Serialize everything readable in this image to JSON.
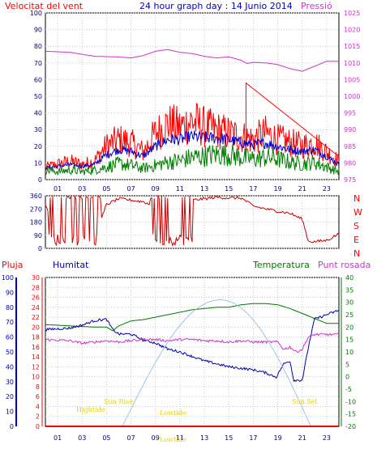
{
  "header": {
    "title": "24 hour graph day : 14 Junio 2014",
    "wind_label": "Velocitat del vent",
    "pressure_label": "Pressió"
  },
  "colors": {
    "wind_speed": "#ff0000",
    "wind_avg": "#0000cc",
    "wind_min": "#008000",
    "pressure": "#cc33cc",
    "direction": "#cc0000",
    "rain": "#ff0000",
    "humidity": "#0000aa",
    "temperature": "#007700",
    "dewpoint": "#cc33cc",
    "solar": "#9fc4e8",
    "sun_markers": "#e6d400",
    "title": "#0000cc"
  },
  "chart_data": [
    {
      "id": "wind",
      "type": "line",
      "ylabel_left": "Velocitat del vent",
      "ylabel_right": "Pressió",
      "x_ticks": [
        "01",
        "03",
        "05",
        "07",
        "09",
        "11",
        "13",
        "15",
        "17",
        "19",
        "21",
        "23"
      ],
      "y_left_ticks": [
        "0",
        "10",
        "20",
        "30",
        "40",
        "50",
        "60",
        "70",
        "80",
        "90",
        "100"
      ],
      "y_right_ticks": [
        "975",
        "980",
        "985",
        "990",
        "995",
        "1000",
        "1005",
        "1010",
        "1015",
        "1020",
        "1025"
      ],
      "x_range": [
        0,
        24
      ],
      "ylim_left": [
        0,
        100
      ],
      "ylim_right": [
        975,
        1025
      ],
      "grid": true,
      "series": [
        {
          "key": "pressure",
          "axis": "right",
          "points": [
            [
              0,
              1013.5
            ],
            [
              2,
              1013.2
            ],
            [
              4,
              1012.0
            ],
            [
              6,
              1011.8
            ],
            [
              7,
              1011.5
            ],
            [
              8,
              1012.2
            ],
            [
              9,
              1013.5
            ],
            [
              10,
              1014.0
            ],
            [
              11,
              1013.2
            ],
            [
              12,
              1012.8
            ],
            [
              13,
              1012.0
            ],
            [
              14,
              1011.5
            ],
            [
              15,
              1011.8
            ],
            [
              16,
              1010.8
            ],
            [
              16.5,
              1009.8
            ],
            [
              17,
              1010.2
            ],
            [
              18,
              1010.0
            ],
            [
              19,
              1009.5
            ],
            [
              20,
              1008.3
            ],
            [
              21,
              1007.5
            ],
            [
              22,
              1009.0
            ],
            [
              23,
              1010.5
            ],
            [
              24,
              1010.5
            ]
          ]
        },
        {
          "key": "wind_speed",
          "axis": "left",
          "gen": "gust",
          "points": [
            [
              0,
              8
            ],
            [
              1,
              10
            ],
            [
              2,
              12
            ],
            [
              3,
              10
            ],
            [
              4,
              12
            ],
            [
              5,
              22
            ],
            [
              6,
              26
            ],
            [
              7,
              24
            ],
            [
              8,
              18
            ],
            [
              9,
              30
            ],
            [
              10,
              36
            ],
            [
              11,
              34
            ],
            [
              12,
              38
            ],
            [
              13,
              34
            ],
            [
              14,
              32
            ],
            [
              15,
              30
            ],
            [
              16,
              28
            ],
            [
              17,
              26
            ],
            [
              18,
              30
            ],
            [
              19,
              26
            ],
            [
              20,
              24
            ],
            [
              21,
              22
            ],
            [
              22,
              24
            ],
            [
              23,
              18
            ],
            [
              24,
              12
            ]
          ]
        },
        {
          "key": "wind_avg",
          "axis": "left",
          "gen": "avg",
          "points": [
            [
              0,
              7
            ],
            [
              1,
              8
            ],
            [
              2,
              9
            ],
            [
              3,
              8
            ],
            [
              4,
              9
            ],
            [
              5,
              15
            ],
            [
              6,
              18
            ],
            [
              7,
              17
            ],
            [
              8,
              14
            ],
            [
              9,
              20
            ],
            [
              10,
              24
            ],
            [
              11,
              24
            ],
            [
              12,
              26
            ],
            [
              13,
              25
            ],
            [
              14,
              25
            ],
            [
              15,
              24
            ],
            [
              16,
              22
            ],
            [
              17,
              21
            ],
            [
              18,
              22
            ],
            [
              19,
              20
            ],
            [
              20,
              18
            ],
            [
              21,
              17
            ],
            [
              22,
              18
            ],
            [
              23,
              14
            ],
            [
              24,
              9
            ]
          ]
        },
        {
          "key": "wind_min",
          "axis": "left",
          "gen": "min",
          "points": [
            [
              0,
              6
            ],
            [
              1,
              5
            ],
            [
              2,
              6
            ],
            [
              3,
              5
            ],
            [
              4,
              6
            ],
            [
              5,
              8
            ],
            [
              6,
              10
            ],
            [
              7,
              9
            ],
            [
              8,
              7
            ],
            [
              9,
              9
            ],
            [
              10,
              11
            ],
            [
              11,
              12
            ],
            [
              12,
              14
            ],
            [
              13,
              15
            ],
            [
              14,
              16
            ],
            [
              15,
              16
            ],
            [
              16,
              14
            ],
            [
              17,
              13
            ],
            [
              18,
              14
            ],
            [
              19,
              13
            ],
            [
              20,
              11
            ],
            [
              21,
              10
            ],
            [
              22,
              11
            ],
            [
              23,
              8
            ],
            [
              24,
              5
            ]
          ]
        }
      ]
    },
    {
      "id": "direction",
      "type": "line",
      "ylabel_right": [
        "N",
        "W",
        "S",
        "E",
        "N"
      ],
      "y_ticks": [
        "0",
        "90",
        "180",
        "270",
        "360"
      ],
      "ylim": [
        0,
        360
      ],
      "x_range": [
        0,
        24
      ],
      "grid": true,
      "series": [
        {
          "key": "direction",
          "gen": "dir",
          "points": [
            [
              0,
              300
            ],
            [
              1,
              60
            ],
            [
              2,
              330
            ],
            [
              3,
              80
            ],
            [
              4,
              60
            ],
            [
              5,
              300
            ],
            [
              6,
              340
            ],
            [
              7,
              330
            ],
            [
              8,
              320
            ],
            [
              9,
              280
            ],
            [
              10,
              300
            ],
            [
              11,
              330
            ],
            [
              12,
              330
            ],
            [
              13,
              340
            ],
            [
              14,
              350
            ],
            [
              15,
              345
            ],
            [
              16,
              345
            ],
            [
              17,
              290
            ],
            [
              18,
              270
            ],
            [
              19,
              255
            ],
            [
              20,
              240
            ],
            [
              21,
              200
            ],
            [
              21.5,
              50
            ],
            [
              22,
              45
            ],
            [
              23,
              55
            ],
            [
              24,
              100
            ]
          ]
        }
      ]
    },
    {
      "id": "climate",
      "type": "line",
      "labels": {
        "rain": "Pluja",
        "humidity": "Humitat",
        "temperature": "Temperatura",
        "dewpoint": "Punt rosada"
      },
      "x_ticks": [
        "01",
        "03",
        "05",
        "07",
        "09",
        "11",
        "13",
        "15",
        "17",
        "19",
        "21",
        "23"
      ],
      "y_rain_ticks": [
        "0",
        "2",
        "4",
        "6",
        "8",
        "10",
        "12",
        "14",
        "16",
        "18",
        "20",
        "22",
        "24",
        "26",
        "28",
        "30"
      ],
      "y_humidity_ticks": [
        "0",
        "10",
        "20",
        "30",
        "40",
        "50",
        "60",
        "70",
        "80",
        "90",
        "100"
      ],
      "y_temp_ticks": [
        "-20",
        "-15",
        "-10",
        "-5",
        "0",
        "5",
        "10",
        "15",
        "20",
        "25",
        "30",
        "35",
        "40"
      ],
      "ylim_rain": [
        0,
        30
      ],
      "ylim_humidity": [
        0,
        100
      ],
      "ylim_temp": [
        -20,
        40
      ],
      "x_range": [
        0,
        24
      ],
      "grid": true,
      "series": [
        {
          "key": "temperature",
          "axis": "temp",
          "points": [
            [
              0,
              21.0
            ],
            [
              2,
              20.5
            ],
            [
              4,
              20.0
            ],
            [
              5,
              20.0
            ],
            [
              5.5,
              18.5
            ],
            [
              6,
              20.5
            ],
            [
              7,
              22.5
            ],
            [
              8,
              23.0
            ],
            [
              9,
              24.0
            ],
            [
              10,
              25.0
            ],
            [
              11,
              26.0
            ],
            [
              12,
              27.0
            ],
            [
              13,
              27.5
            ],
            [
              14,
              28.0
            ],
            [
              15,
              28.0
            ],
            [
              16,
              29.0
            ],
            [
              17,
              29.5
            ],
            [
              18,
              29.5
            ],
            [
              19,
              29.0
            ],
            [
              20,
              27.5
            ],
            [
              21,
              25.5
            ],
            [
              22,
              23.5
            ],
            [
              23,
              21.5
            ],
            [
              24,
              21.5
            ]
          ]
        },
        {
          "key": "humidity",
          "axis": "humidity",
          "gen": "noisy",
          "points": [
            [
              0,
              65
            ],
            [
              1,
              65.5
            ],
            [
              2,
              66
            ],
            [
              3,
              68
            ],
            [
              4,
              71
            ],
            [
              5,
              72
            ],
            [
              5.5,
              65
            ],
            [
              6,
              62
            ],
            [
              7,
              62
            ],
            [
              8,
              58
            ],
            [
              9,
              56
            ],
            [
              10,
              52
            ],
            [
              11,
              50
            ],
            [
              12,
              47
            ],
            [
              13,
              44
            ],
            [
              14,
              42
            ],
            [
              15,
              40
            ],
            [
              16,
              39
            ],
            [
              17,
              38
            ],
            [
              18,
              36
            ],
            [
              18.9,
              33
            ],
            [
              19,
              35
            ],
            [
              19.5,
              42
            ],
            [
              20,
              44
            ],
            [
              20.3,
              31
            ],
            [
              21,
              31
            ],
            [
              21.5,
              53
            ],
            [
              22,
              72
            ],
            [
              23,
              75
            ],
            [
              24,
              78
            ]
          ]
        },
        {
          "key": "dewpoint",
          "axis": "temp",
          "gen": "noisy",
          "points": [
            [
              0,
              15
            ],
            [
              2,
              14.5
            ],
            [
              3,
              13.5
            ],
            [
              4,
              14
            ],
            [
              5,
              14.5
            ],
            [
              6,
              14
            ],
            [
              7,
              14.5
            ],
            [
              8,
              15
            ],
            [
              9,
              15
            ],
            [
              10,
              14.5
            ],
            [
              11,
              15
            ],
            [
              12,
              15
            ],
            [
              13,
              14.5
            ],
            [
              14,
              14.5
            ],
            [
              15,
              14
            ],
            [
              16,
              14.5
            ],
            [
              17,
              14
            ],
            [
              18,
              14
            ],
            [
              19,
              14
            ],
            [
              19.5,
              11
            ],
            [
              20,
              12
            ],
            [
              20.5,
              10
            ],
            [
              21,
              11
            ],
            [
              21.5,
              16
            ],
            [
              22,
              17
            ],
            [
              23,
              17
            ],
            [
              24,
              17
            ]
          ]
        },
        {
          "key": "solar",
          "axis": "humidity",
          "curve": "solar",
          "x_range": [
            6.3,
            21.7
          ],
          "peak": 85,
          "peak_x": 14.3
        },
        {
          "key": "rain",
          "axis": "rain",
          "points": [
            [
              0,
              0
            ],
            [
              24,
              0
            ]
          ]
        }
      ],
      "markers": {
        "sun_rise": "Sun Rise",
        "sun_set": "Sun Set",
        "high_tide": "Hightide",
        "low_tide_1": "Lowtide",
        "low_tide_2": "Lowtide"
      }
    }
  ]
}
